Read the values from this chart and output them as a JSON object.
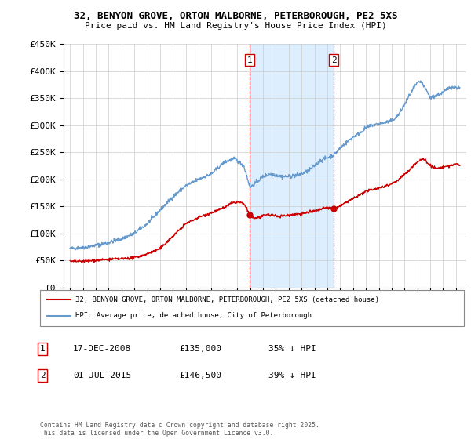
{
  "title": "32, BENYON GROVE, ORTON MALBORNE, PETERBOROUGH, PE2 5XS",
  "subtitle": "Price paid vs. HM Land Registry's House Price Index (HPI)",
  "footer": "Contains HM Land Registry data © Crown copyright and database right 2025.\nThis data is licensed under the Open Government Licence v3.0.",
  "legend_line1": "32, BENYON GROVE, ORTON MALBORNE, PETERBOROUGH, PE2 5XS (detached house)",
  "legend_line2": "HPI: Average price, detached house, City of Peterborough",
  "sale1_date": "17-DEC-2008",
  "sale1_price": "£135,000",
  "sale1_pct": "35% ↓ HPI",
  "sale2_date": "01-JUL-2015",
  "sale2_price": "£146,500",
  "sale2_pct": "39% ↓ HPI",
  "ylim": [
    0,
    450000
  ],
  "xlim_start": 1994.5,
  "xlim_end": 2025.8,
  "sale1_x": 2008.96,
  "sale1_y": 135000,
  "sale2_x": 2015.5,
  "sale2_y": 146500,
  "red_color": "#cc0000",
  "blue_color": "#6699cc",
  "shade_color": "#ddeeff",
  "background_color": "#ffffff",
  "grid_color": "#cccccc",
  "hpi_anchors": [
    [
      1995.0,
      72000
    ],
    [
      1996.0,
      74000
    ],
    [
      1997.0,
      78000
    ],
    [
      1998.0,
      83000
    ],
    [
      1999.0,
      90000
    ],
    [
      2000.0,
      100000
    ],
    [
      2001.0,
      118000
    ],
    [
      2002.0,
      143000
    ],
    [
      2003.0,
      168000
    ],
    [
      2004.0,
      188000
    ],
    [
      2005.0,
      200000
    ],
    [
      2006.0,
      210000
    ],
    [
      2007.0,
      232000
    ],
    [
      2007.8,
      238000
    ],
    [
      2008.5,
      225000
    ],
    [
      2009.0,
      185000
    ],
    [
      2009.5,
      195000
    ],
    [
      2010.0,
      205000
    ],
    [
      2010.5,
      210000
    ],
    [
      2011.0,
      208000
    ],
    [
      2011.5,
      205000
    ],
    [
      2012.0,
      205000
    ],
    [
      2012.5,
      207000
    ],
    [
      2013.0,
      210000
    ],
    [
      2013.5,
      215000
    ],
    [
      2014.0,
      225000
    ],
    [
      2014.5,
      235000
    ],
    [
      2015.0,
      240000
    ],
    [
      2015.5,
      245000
    ],
    [
      2016.0,
      258000
    ],
    [
      2016.5,
      268000
    ],
    [
      2017.0,
      278000
    ],
    [
      2017.5,
      285000
    ],
    [
      2018.0,
      295000
    ],
    [
      2018.5,
      300000
    ],
    [
      2019.0,
      302000
    ],
    [
      2019.5,
      305000
    ],
    [
      2020.0,
      308000
    ],
    [
      2020.5,
      318000
    ],
    [
      2021.0,
      338000
    ],
    [
      2021.5,
      360000
    ],
    [
      2022.0,
      378000
    ],
    [
      2022.3,
      380000
    ],
    [
      2022.8,
      360000
    ],
    [
      2023.0,
      350000
    ],
    [
      2023.5,
      355000
    ],
    [
      2024.0,
      360000
    ],
    [
      2024.5,
      370000
    ],
    [
      2025.0,
      370000
    ],
    [
      2025.3,
      368000
    ]
  ],
  "red_anchors": [
    [
      1995.0,
      48000
    ],
    [
      1996.0,
      48500
    ],
    [
      1997.0,
      50000
    ],
    [
      1998.0,
      52000
    ],
    [
      1999.0,
      53000
    ],
    [
      2000.0,
      55000
    ],
    [
      2001.0,
      62000
    ],
    [
      2002.0,
      72000
    ],
    [
      2003.0,
      95000
    ],
    [
      2004.0,
      118000
    ],
    [
      2005.0,
      130000
    ],
    [
      2006.0,
      138000
    ],
    [
      2007.0,
      148000
    ],
    [
      2007.5,
      155000
    ],
    [
      2008.0,
      158000
    ],
    [
      2008.5,
      155000
    ],
    [
      2008.96,
      135000
    ],
    [
      2009.3,
      128000
    ],
    [
      2009.8,
      130000
    ],
    [
      2010.3,
      135000
    ],
    [
      2010.8,
      133000
    ],
    [
      2011.3,
      132000
    ],
    [
      2011.8,
      133000
    ],
    [
      2012.3,
      135000
    ],
    [
      2012.8,
      136000
    ],
    [
      2013.3,
      138000
    ],
    [
      2013.8,
      140000
    ],
    [
      2014.3,
      143000
    ],
    [
      2014.8,
      147000
    ],
    [
      2015.3,
      147000
    ],
    [
      2015.5,
      146500
    ],
    [
      2015.8,
      148000
    ],
    [
      2016.3,
      155000
    ],
    [
      2016.8,
      162000
    ],
    [
      2017.3,
      168000
    ],
    [
      2017.8,
      175000
    ],
    [
      2018.3,
      180000
    ],
    [
      2018.8,
      183000
    ],
    [
      2019.3,
      186000
    ],
    [
      2019.8,
      190000
    ],
    [
      2020.3,
      195000
    ],
    [
      2020.8,
      205000
    ],
    [
      2021.3,
      215000
    ],
    [
      2021.8,
      228000
    ],
    [
      2022.2,
      235000
    ],
    [
      2022.5,
      238000
    ],
    [
      2022.8,
      230000
    ],
    [
      2023.2,
      222000
    ],
    [
      2023.5,
      220000
    ],
    [
      2024.0,
      222000
    ],
    [
      2024.5,
      225000
    ],
    [
      2025.0,
      228000
    ],
    [
      2025.3,
      226000
    ]
  ]
}
